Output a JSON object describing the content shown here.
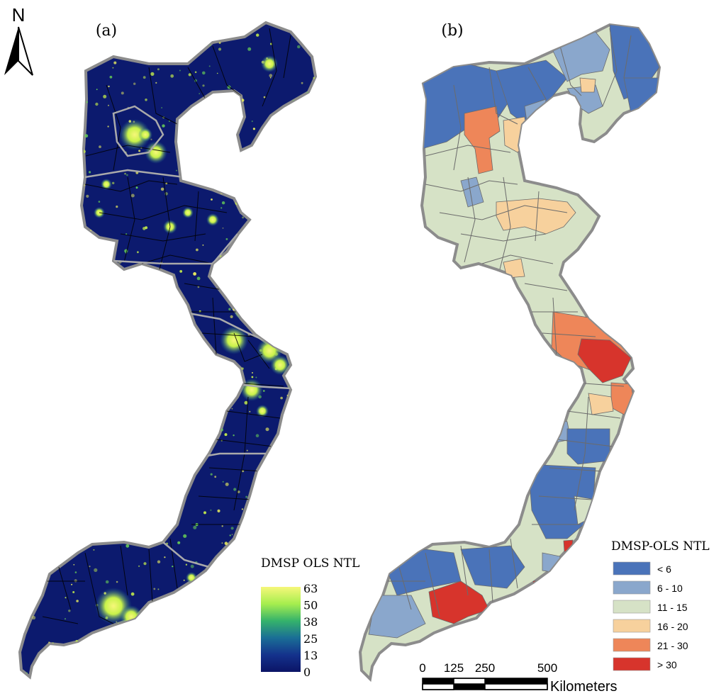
{
  "north_arrow": {
    "label": "N"
  },
  "panel_a": {
    "label": "(a)",
    "legend": {
      "title": "DMSP OLS NTL",
      "ticks": [
        "63",
        "50",
        "38",
        "25",
        "13",
        "0"
      ],
      "gradient_colors": [
        "#f6f77a",
        "#a6ee4e",
        "#35b26b",
        "#1a6e96",
        "#14328c",
        "#0b1466"
      ]
    },
    "base_color": "#0c1a6e",
    "light_colors": [
      "#f4f75e",
      "#c8f24a",
      "#6fdc55"
    ]
  },
  "panel_b": {
    "label": "(b)",
    "legend": {
      "title": "DMSP-OLS NTL",
      "classes": [
        {
          "label": "< 6",
          "color": "#4a73b9"
        },
        {
          "label": "6 - 10",
          "color": "#8aa7cc"
        },
        {
          "label": "11 - 15",
          "color": "#d6e2c6"
        },
        {
          "label": "16 - 20",
          "color": "#f7d19d"
        },
        {
          "label": "21 - 30",
          "color": "#ee8659"
        },
        {
          "label": "> 30",
          "color": "#d7342c"
        }
      ]
    }
  },
  "scale_bar": {
    "ticks": [
      "0",
      "125",
      "250",
      "500"
    ],
    "unit": "Kilometers"
  }
}
